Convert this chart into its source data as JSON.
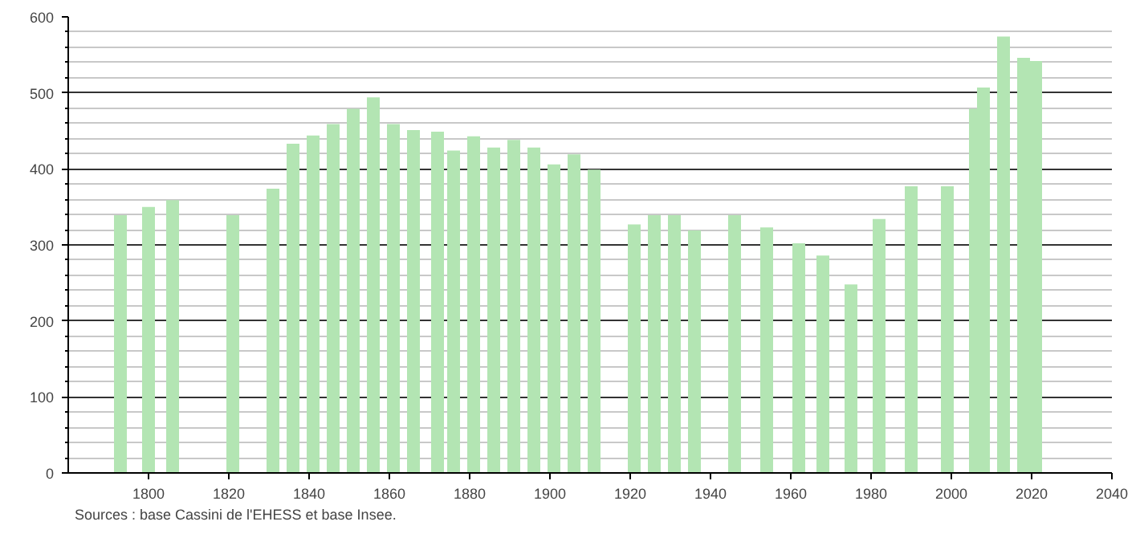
{
  "chart_data": {
    "type": "bar",
    "x": [
      1793,
      1800,
      1806,
      1821,
      1831,
      1836,
      1841,
      1846,
      1851,
      1856,
      1861,
      1866,
      1872,
      1876,
      1881,
      1886,
      1891,
      1896,
      1901,
      1906,
      1911,
      1921,
      1926,
      1931,
      1936,
      1946,
      1954,
      1962,
      1968,
      1975,
      1982,
      1990,
      1999,
      2006,
      2008,
      2013,
      2018,
      2021
    ],
    "values": [
      339,
      350,
      359,
      339,
      374,
      433,
      444,
      459,
      479,
      494,
      459,
      451,
      449,
      424,
      443,
      428,
      438,
      428,
      406,
      419,
      399,
      327,
      339,
      339,
      319,
      339,
      323,
      302,
      286,
      248,
      334,
      377,
      377,
      479,
      507,
      574,
      546,
      542
    ],
    "color": "#b3e5b3",
    "xlim": [
      1780,
      2040
    ],
    "xticks": [
      1800,
      1820,
      1840,
      1860,
      1880,
      1900,
      1920,
      1940,
      1960,
      1980,
      2000,
      2020,
      2040
    ],
    "ylim": [
      0,
      600
    ],
    "yticks": [
      0,
      100,
      200,
      300,
      400,
      500,
      600
    ],
    "grid": "y",
    "annotations": [
      "Sources : base Cassini de l'EHESS et base Insee."
    ]
  }
}
